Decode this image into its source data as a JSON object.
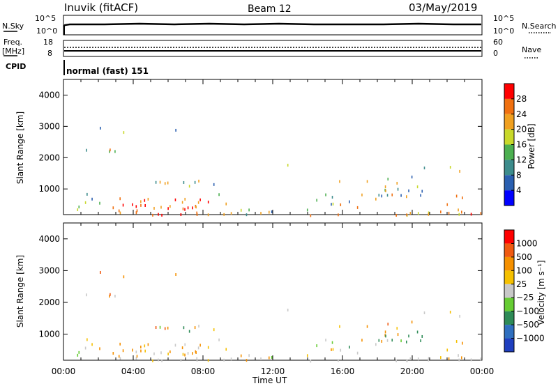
{
  "header": {
    "station": "Inuvik (fitACF)",
    "beam": "Beam 12",
    "date": "03/May/2019"
  },
  "panels": {
    "nsky": {
      "left_label": "N.Sky",
      "right_label": "N.Search",
      "left_ticks": [
        "10^5",
        "10^0"
      ],
      "right_ticks": [
        "10^5",
        "10^0"
      ]
    },
    "freq": {
      "left_label_1": "Freq.",
      "left_label_2": "[MHz]",
      "right_label": "Nave",
      "left_ticks": [
        "18",
        "8"
      ],
      "right_ticks": [
        "60",
        "0"
      ]
    },
    "cpid": {
      "label": "CPID",
      "value": "normal (fast) 151"
    }
  },
  "chart_data": [
    {
      "type": "heatmap",
      "title": "",
      "xlabel": "",
      "ylabel": "Slant Range [km]",
      "y_ticks": [
        "1000",
        "2000",
        "3000",
        "4000"
      ],
      "x_ticks": [],
      "colorbar": {
        "label": "Power [dB]",
        "ticks": [
          "4",
          "8",
          "12",
          "16",
          "20",
          "24",
          "28"
        ],
        "colors": [
          "#0000ff",
          "#2a5fb0",
          "#3d8c8c",
          "#4caf50",
          "#c8d82a",
          "#f0a020",
          "#f07010",
          "#ff0000"
        ]
      },
      "ylim": [
        180,
        4500
      ],
      "xlim": [
        "00:00",
        "24:00"
      ]
    },
    {
      "type": "heatmap",
      "title": "",
      "xlabel": "Time UT",
      "ylabel": "Slant Range [km]",
      "y_ticks": [
        "1000",
        "2000",
        "3000",
        "4000"
      ],
      "x_ticks": [
        "00:00",
        "04:00",
        "08:00",
        "12:00",
        "16:00",
        "20:00",
        "00:00"
      ],
      "colorbar": {
        "label": "Velocity [m s⁻¹]",
        "ticks": [
          "1000",
          "500",
          "100",
          "25",
          "−25",
          "−100",
          "−500",
          "−1000"
        ],
        "colors": [
          "#1f3fbf",
          "#2f6fbf",
          "#2e8b57",
          "#66cc33",
          "#c8c8c8",
          "#f5c000",
          "#f59000",
          "#f05a10",
          "#ff0000"
        ]
      },
      "ylim": [
        180,
        4500
      ],
      "xlim": [
        "00:00",
        "24:00"
      ]
    }
  ]
}
